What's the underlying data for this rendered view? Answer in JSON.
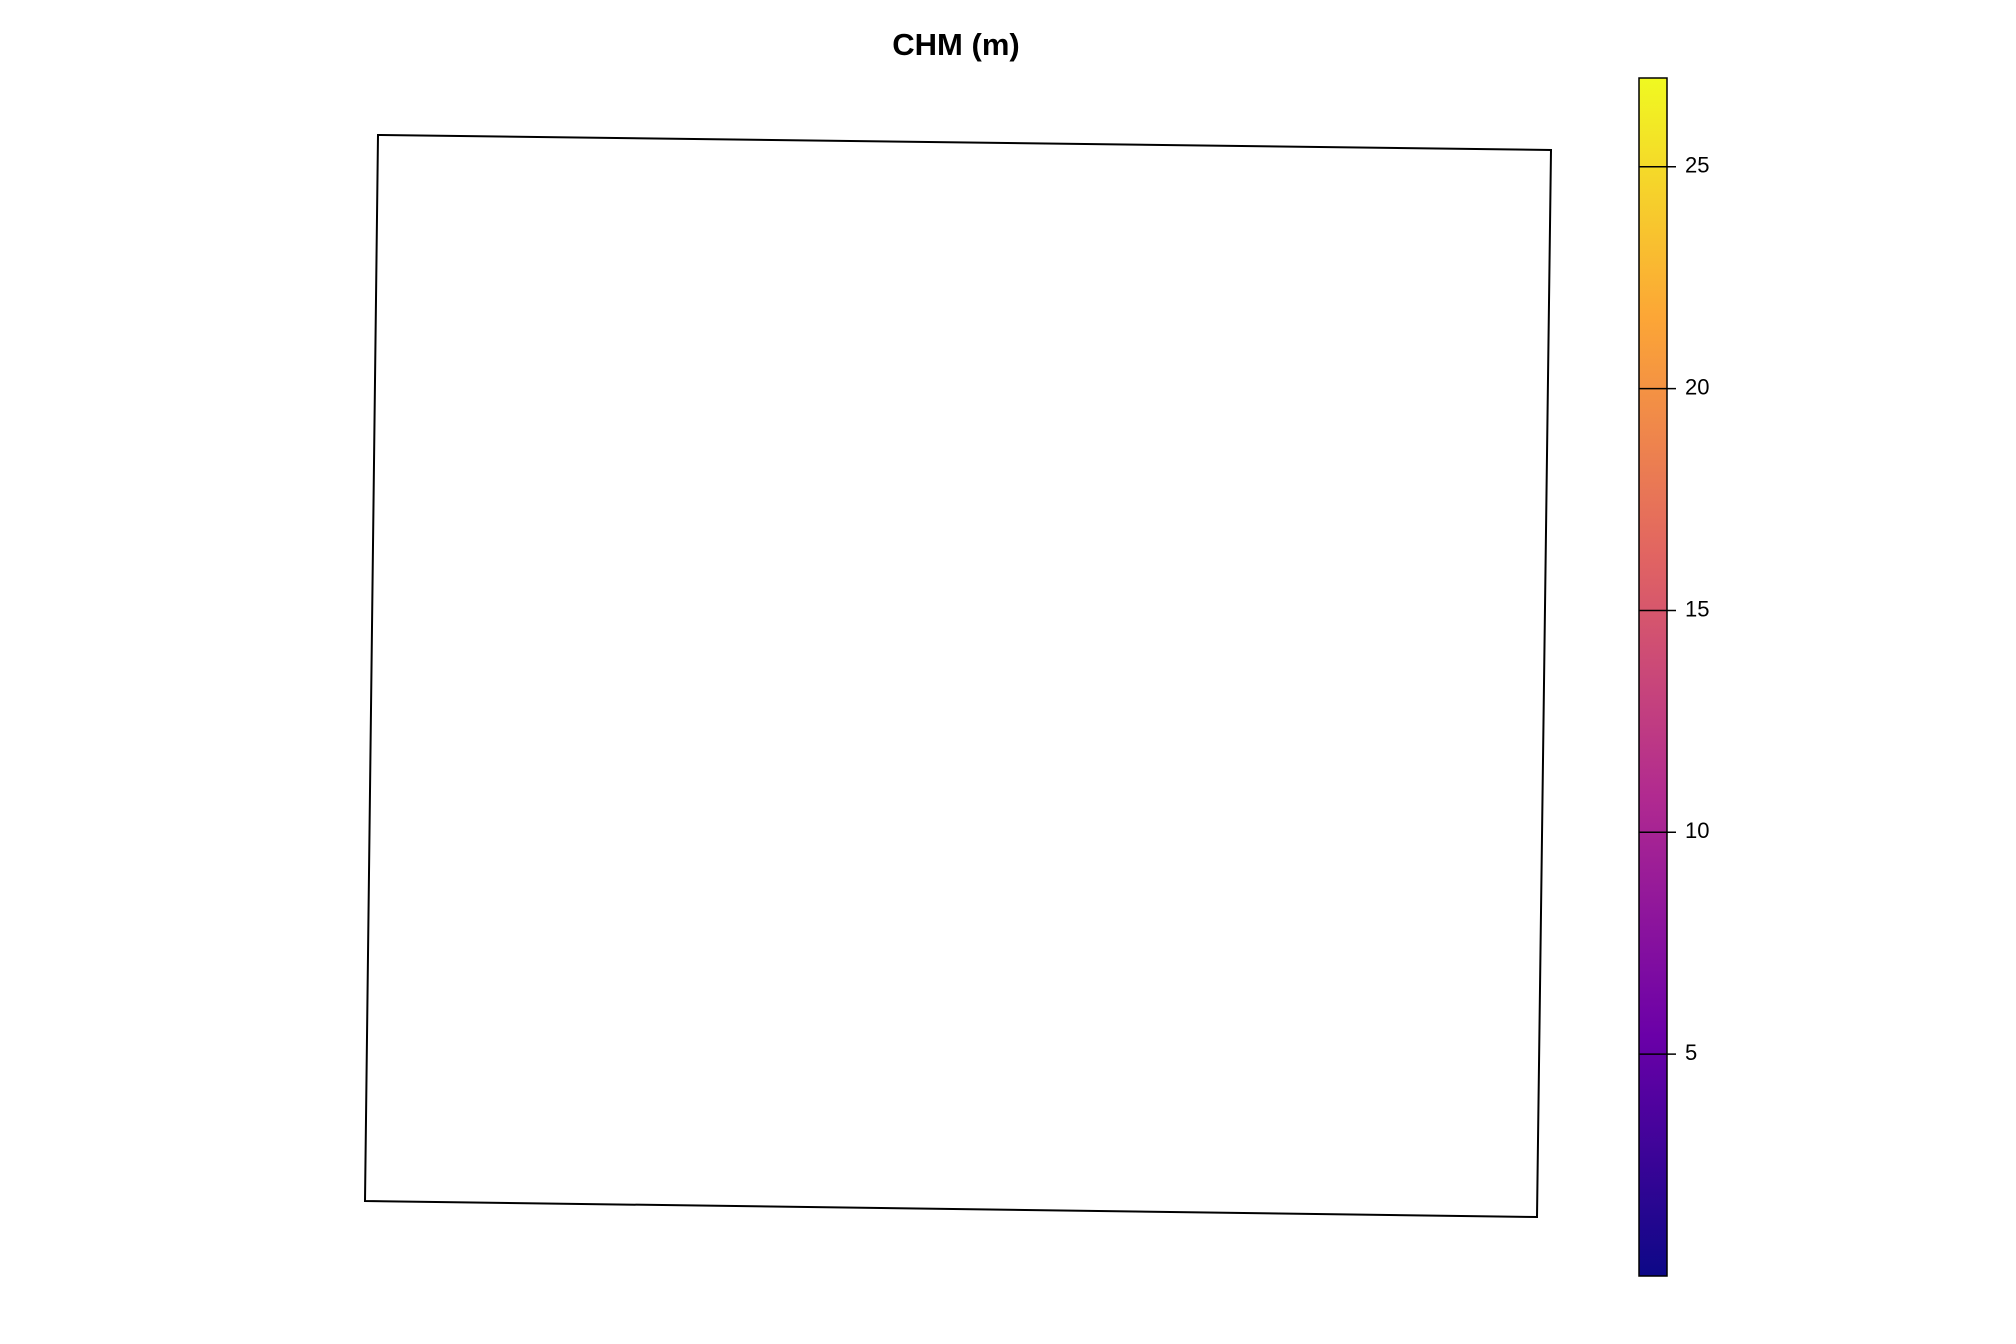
{
  "chart_data": {
    "type": "raster",
    "title": "CHM (m)",
    "colorbar": {
      "colors": [
        "#0d0887",
        "#6a00a8",
        "#b12a90",
        "#e16462",
        "#fca636",
        "#f0f921"
      ],
      "zlim": [
        0,
        27
      ],
      "ticks": [
        5,
        10,
        15,
        20,
        25
      ]
    }
  }
}
